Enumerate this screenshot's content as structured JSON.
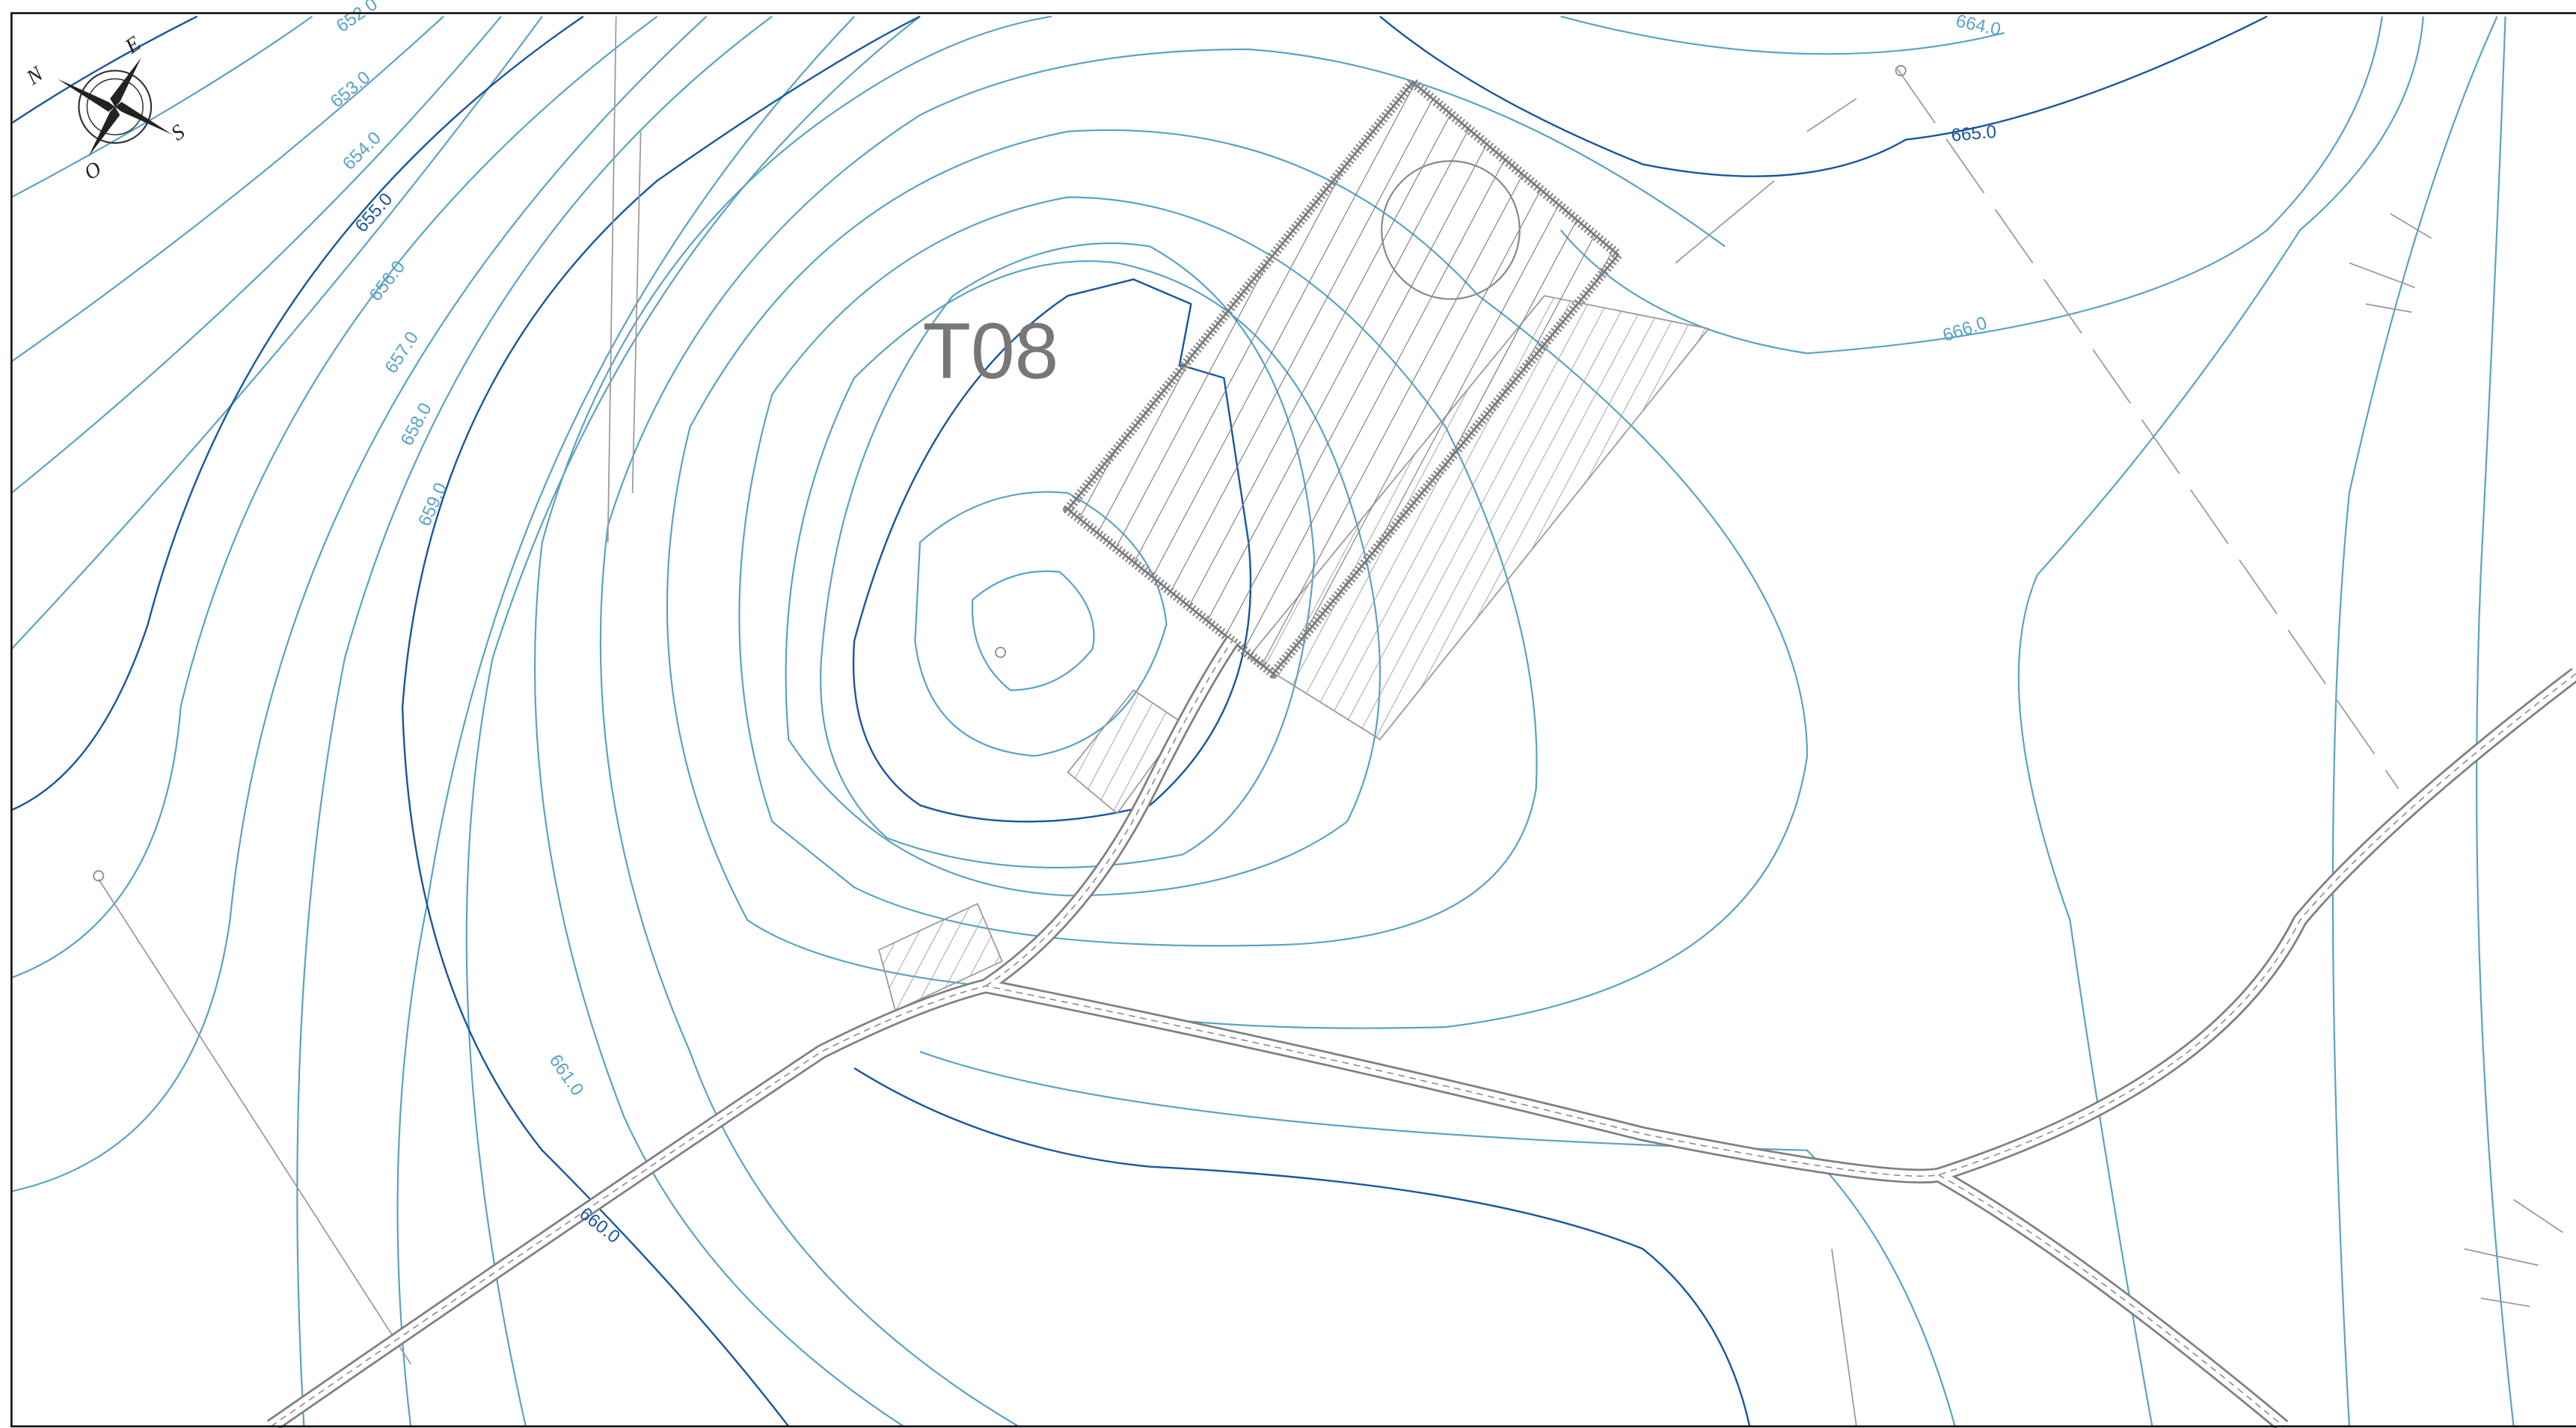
{
  "title": "T08",
  "compass": {
    "north": "N",
    "east": "E",
    "south": "S",
    "west": "O"
  },
  "contour_labels": [
    "652.0",
    "653.0",
    "654.0",
    "655.0",
    "656.0",
    "657.0",
    "658.0",
    "659.0",
    "660.0",
    "661.0",
    "664.0",
    "665.0",
    "666.0"
  ]
}
